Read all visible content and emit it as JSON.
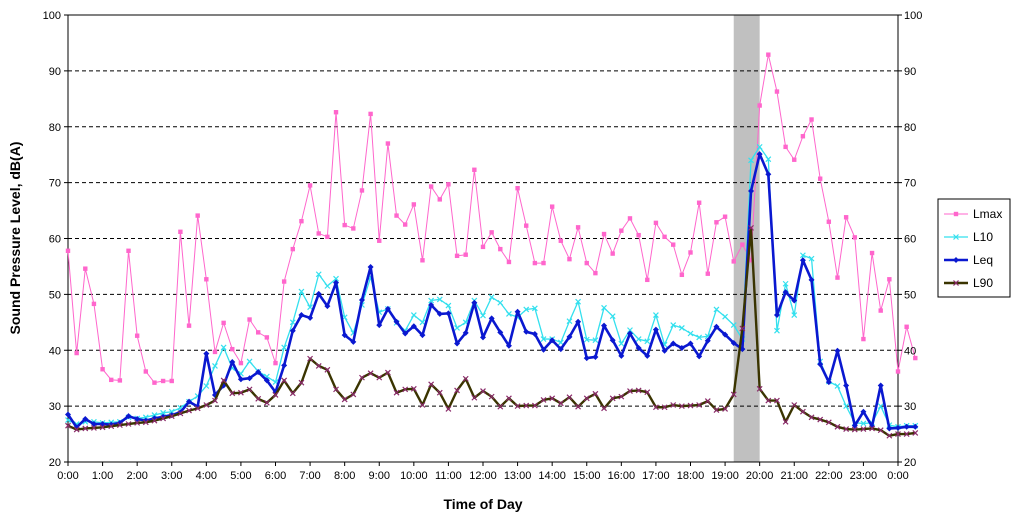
{
  "chart_data": {
    "type": "line",
    "title": "",
    "xlabel": "Time of Day",
    "ylabel": "Sound Pressure Level, dB(A)",
    "ylim": [
      20,
      100
    ],
    "yticks": [
      "20",
      "30",
      "40",
      "50",
      "60",
      "70",
      "80",
      "90",
      "100"
    ],
    "xticks": [
      "0:00",
      "1:00",
      "2:00",
      "3:00",
      "4:00",
      "5:00",
      "6:00",
      "7:00",
      "8:00",
      "9:00",
      "10:00",
      "11:00",
      "12:00",
      "13:00",
      "14:00",
      "15:00",
      "16:00",
      "17:00",
      "18:00",
      "19:00",
      "20:00",
      "21:00",
      "22:00",
      "23:00",
      "0:00"
    ],
    "x_unit": "hours",
    "interval_hours": 0.25,
    "grid": "horizontal dashed",
    "legend_position": "right",
    "highlight": {
      "x_from": 19.25,
      "x_to": 20.0,
      "color": "#c0c0c0"
    },
    "colors": {
      "Lmax": "#ff66cc",
      "L10": "#33e0ee",
      "Leq": "#0a18d0",
      "L90": "#3a3400",
      "L90_marker": "#8a2a6a"
    },
    "series": [
      {
        "name": "Lmax",
        "values": [
          57.8,
          39.5,
          54.6,
          48.3,
          36.6,
          34.7,
          34.6,
          57.8,
          42.6,
          36.2,
          34.2,
          34.5,
          34.5,
          61.2,
          44.4,
          64.1,
          52.7,
          39.7,
          44.9,
          40.2,
          37.7,
          45.5,
          43.2,
          42.3,
          37.7,
          52.3,
          58.1,
          63.1,
          69.5,
          60.9,
          60.3,
          82.6,
          62.4,
          61.8,
          68.6,
          82.3,
          59.6,
          77.0,
          64.1,
          62.5,
          66.1,
          56.1,
          69.3,
          67.0,
          69.7,
          56.9,
          57.1,
          72.3,
          58.5,
          61.1,
          58.1,
          55.8,
          69.0,
          62.3,
          55.6,
          55.6,
          65.7,
          59.6,
          56.3,
          62.0,
          55.6,
          53.8,
          60.8,
          57.3,
          61.4,
          63.6,
          60.6,
          52.6,
          62.8,
          60.3,
          58.9,
          53.5,
          57.5,
          66.4,
          53.7,
          62.9,
          63.9,
          55.9,
          58.9,
          56.1,
          83.8,
          92.9,
          86.3,
          76.4,
          74.1,
          78.3,
          81.3,
          70.7,
          63.0,
          53.0,
          63.8,
          60.2,
          42.0,
          57.4,
          47.1,
          52.7,
          36.2,
          44.2,
          38.6
        ]
      },
      {
        "name": "L10",
        "values": [
          27.5,
          26.8,
          27.2,
          27.2,
          27.0,
          27.1,
          27.2,
          28.0,
          27.8,
          28.0,
          28.4,
          28.8,
          29.0,
          29.7,
          30.8,
          31.8,
          33.6,
          37.2,
          40.5,
          36.8,
          35.8,
          38.0,
          36.2,
          35.3,
          34.3,
          40.5,
          45.0,
          50.5,
          47.7,
          53.6,
          51.5,
          52.8,
          45.9,
          43.1,
          48.1,
          53.1,
          46.8,
          47.4,
          44.9,
          43.5,
          46.3,
          45.0,
          48.9,
          49.1,
          48.0,
          44.0,
          45.0,
          48.9,
          46.2,
          49.5,
          48.5,
          46.5,
          45.9,
          47.3,
          47.5,
          42.0,
          42.0,
          41.4,
          45.2,
          48.7,
          41.9,
          41.8,
          47.6,
          46.1,
          41.2,
          43.6,
          42.0,
          41.6,
          46.3,
          41.0,
          44.5,
          44.0,
          43.0,
          42.3,
          42.5,
          47.3,
          46.0,
          44.5,
          42.0,
          74.0,
          76.4,
          74.2,
          43.5,
          51.9,
          46.3,
          57.0,
          56.4,
          38.0,
          34.4,
          33.6,
          30.0,
          27.0,
          26.9,
          27.0,
          30.0,
          26.6,
          26.3,
          26.5,
          26.5
        ]
      },
      {
        "name": "Leq",
        "values": [
          28.5,
          26.2,
          27.7,
          26.8,
          26.8,
          26.7,
          27.0,
          28.2,
          27.7,
          27.4,
          27.8,
          28.1,
          28.4,
          28.9,
          30.8,
          29.9,
          39.4,
          32.0,
          33.7,
          37.9,
          34.8,
          35.0,
          36.1,
          34.6,
          32.5,
          37.3,
          43.5,
          46.3,
          45.8,
          50.1,
          47.9,
          52.1,
          42.7,
          41.5,
          49.0,
          54.9,
          44.5,
          47.4,
          45.1,
          43.0,
          44.3,
          42.7,
          48.1,
          46.5,
          46.6,
          41.2,
          43.1,
          48.5,
          42.3,
          45.7,
          43.2,
          40.8,
          46.9,
          43.3,
          42.9,
          40.1,
          41.8,
          40.2,
          42.4,
          45.1,
          38.6,
          38.8,
          44.4,
          41.8,
          39.0,
          43.0,
          40.4,
          39.0,
          43.7,
          39.9,
          41.2,
          40.4,
          41.2,
          38.9,
          41.7,
          44.2,
          42.8,
          41.3,
          40.2,
          68.5,
          75.1,
          71.5,
          46.3,
          50.4,
          48.9,
          56.1,
          52.6,
          37.5,
          34.3,
          39.9,
          33.7,
          26.5,
          29.0,
          26.4,
          33.7,
          26.0,
          26.1,
          26.3,
          26.3
        ]
      },
      {
        "name": "L90",
        "values": [
          26.5,
          25.8,
          26.0,
          26.1,
          26.2,
          26.4,
          26.6,
          26.8,
          27.0,
          27.1,
          27.4,
          27.8,
          28.2,
          28.7,
          29.2,
          29.6,
          30.2,
          31.0,
          34.6,
          32.3,
          32.4,
          33.0,
          31.3,
          30.6,
          32.0,
          34.6,
          32.3,
          34.2,
          38.5,
          37.2,
          36.5,
          33.0,
          31.2,
          32.1,
          35.1,
          35.9,
          35.1,
          36.0,
          32.4,
          33.0,
          33.1,
          30.2,
          33.9,
          32.4,
          29.5,
          32.8,
          34.9,
          31.5,
          32.7,
          31.7,
          29.9,
          31.4,
          30.0,
          30.1,
          30.1,
          31.1,
          31.4,
          30.5,
          31.6,
          29.9,
          31.4,
          32.2,
          29.6,
          31.4,
          31.7,
          32.7,
          32.8,
          32.5,
          29.8,
          29.8,
          30.2,
          30.0,
          30.1,
          30.2,
          30.9,
          29.3,
          29.5,
          32.1,
          43.9,
          61.9,
          33.1,
          31.0,
          31.0,
          27.2,
          30.2,
          29.0,
          28.0,
          27.6,
          27.1,
          26.3,
          25.9,
          25.8,
          25.9,
          26.0,
          25.7,
          24.7,
          25.0,
          25.0,
          25.2
        ]
      }
    ]
  }
}
